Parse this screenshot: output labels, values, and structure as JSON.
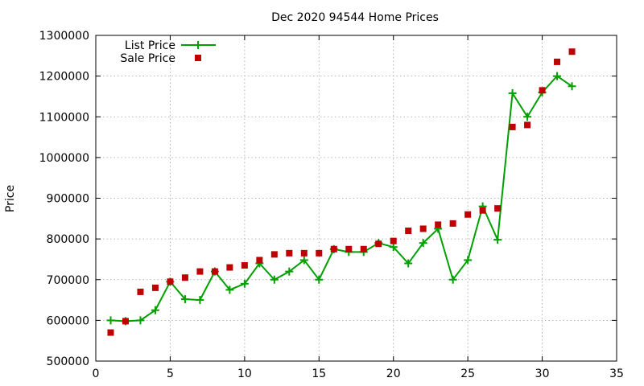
{
  "chart_data": {
    "type": "line",
    "title": "Dec 2020 94544 Home Prices",
    "xlabel": "",
    "ylabel": "Price",
    "xlim": [
      0,
      35
    ],
    "ylim": [
      500000,
      1300000
    ],
    "xticks": [
      0,
      5,
      10,
      15,
      20,
      25,
      30,
      35
    ],
    "yticks": [
      500000,
      600000,
      700000,
      800000,
      900000,
      1000000,
      1100000,
      1200000,
      1300000
    ],
    "xtick_labels": [
      "0",
      "5",
      "10",
      "15",
      "20",
      "25",
      "30",
      "35"
    ],
    "ytick_labels": [
      "500000",
      "600000",
      "700000",
      "800000",
      "900000",
      "1000000",
      "1100000",
      "1200000",
      "1300000"
    ],
    "grid": true,
    "legend_position": "top-left",
    "x": [
      1,
      2,
      3,
      4,
      5,
      6,
      7,
      8,
      9,
      10,
      11,
      12,
      13,
      14,
      15,
      16,
      17,
      18,
      19,
      20,
      21,
      22,
      23,
      24,
      25,
      26,
      27,
      28,
      29,
      30,
      31,
      32
    ],
    "series": [
      {
        "name": "List Price",
        "style": "line-plus",
        "color": "#00a000",
        "values": [
          600000,
          598000,
          600000,
          625000,
          695000,
          652000,
          650000,
          720000,
          675000,
          690000,
          740000,
          700000,
          720000,
          748000,
          700000,
          775000,
          768000,
          768000,
          790000,
          780000,
          740000,
          790000,
          825000,
          700000,
          748000,
          880000,
          798000,
          1158000,
          1100000,
          1160000,
          1200000,
          1175000
        ]
      },
      {
        "name": "Sale Price",
        "style": "square",
        "color": "#c00000",
        "values": [
          570000,
          598000,
          670000,
          680000,
          695000,
          705000,
          720000,
          720000,
          730000,
          735000,
          748000,
          762000,
          765000,
          765000,
          765000,
          775000,
          775000,
          775000,
          788000,
          795000,
          820000,
          825000,
          835000,
          838000,
          860000,
          870000,
          875000,
          1075000,
          1080000,
          1165000,
          1235000,
          1260000
        ]
      }
    ]
  }
}
